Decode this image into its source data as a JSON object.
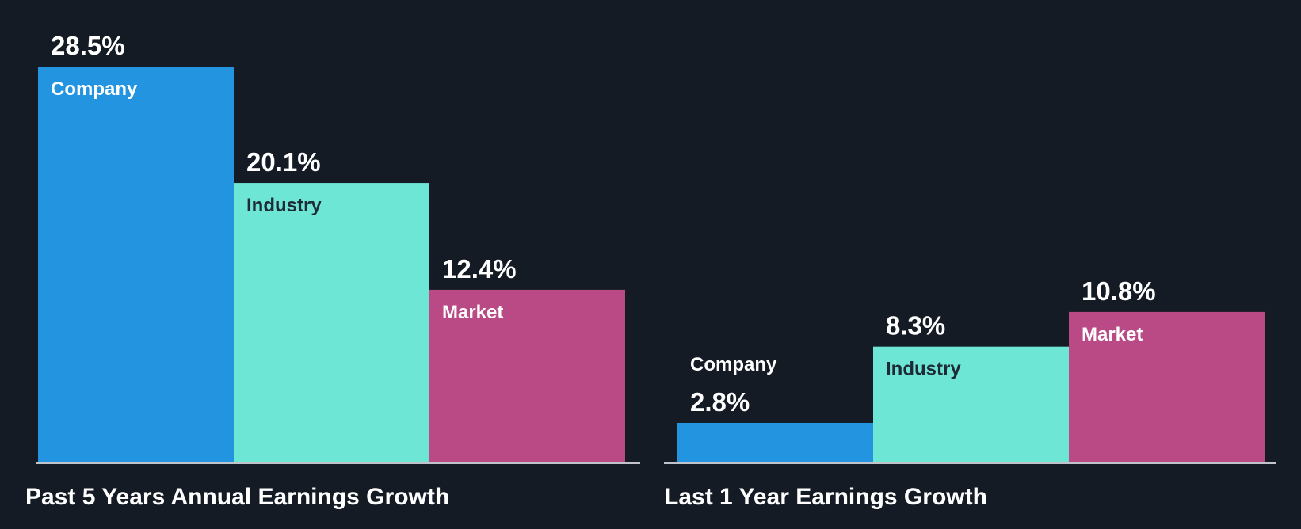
{
  "chart_data": [
    {
      "type": "bar",
      "title": "Past 5 Years Annual Earnings Growth",
      "categories": [
        "Company",
        "Industry",
        "Market"
      ],
      "values": [
        28.5,
        20.1,
        12.4
      ],
      "value_labels": [
        "28.5%",
        "20.1%",
        "12.4%"
      ],
      "unit": "%",
      "xlabel": "",
      "ylabel": "",
      "ylim": [
        0,
        28.5
      ],
      "grid": false,
      "legend": "none"
    },
    {
      "type": "bar",
      "title": "Last 1 Year Earnings Growth",
      "categories": [
        "Company",
        "Industry",
        "Market"
      ],
      "values": [
        2.8,
        8.3,
        10.8
      ],
      "value_labels": [
        "2.8%",
        "8.3%",
        "10.8%"
      ],
      "unit": "%",
      "xlabel": "",
      "ylabel": "",
      "ylim": [
        0,
        28.5
      ],
      "grid": false,
      "legend": "none"
    }
  ],
  "colors": {
    "background": "#151b24",
    "Company": "#2394e0",
    "Industry": "#6ee6d6",
    "Market": "#b94a85",
    "axis": "#c0c4ca",
    "label_on_light": "#1e2a36",
    "label_on_dark": "#ffffff"
  }
}
